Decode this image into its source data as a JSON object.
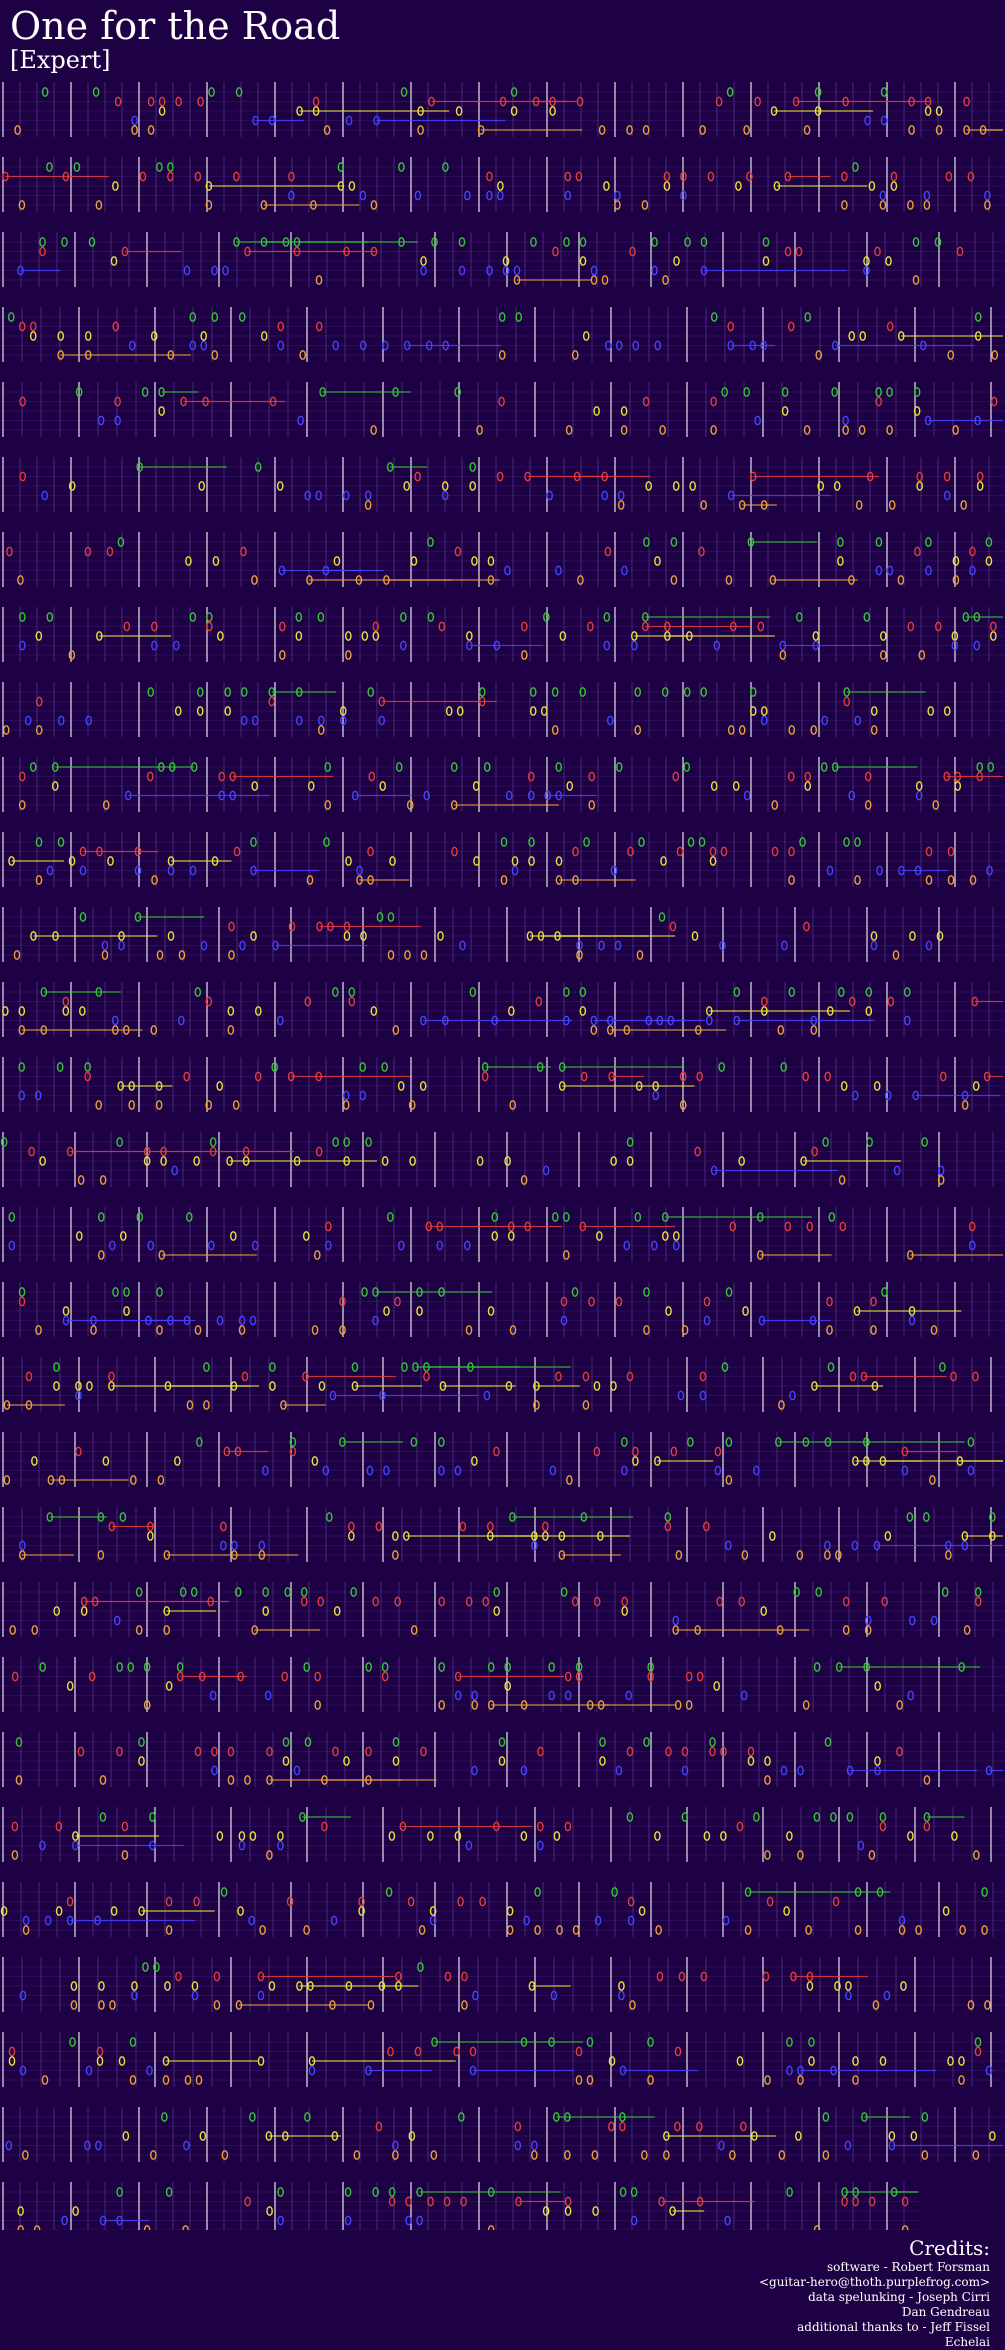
{
  "song": {
    "title": "One for the Road",
    "difficulty": "[Expert]"
  },
  "credits": {
    "heading": "Credits:",
    "lines": [
      "software - Robert Forsman",
      "<guitar-hero@thoth.purplefrog.com>",
      "data spelunking - Joseph Cirri",
      "Dan Gendreau",
      "additional thanks to - Jeff Fissel",
      "Echelai"
    ]
  },
  "colors": {
    "background": "#1e0044",
    "fret_green": "#35c535",
    "fret_red": "#e23c3c",
    "fret_yellow": "#e8e23a",
    "fret_blue": "#4444ff",
    "fret_orange": "#e8a23a",
    "bar_line": "#ffffff",
    "beat_line": "#6a4aa0"
  },
  "staff": {
    "row_count": 29,
    "lane_colors": [
      "green",
      "red",
      "yellow",
      "blue",
      "orange"
    ]
  }
}
